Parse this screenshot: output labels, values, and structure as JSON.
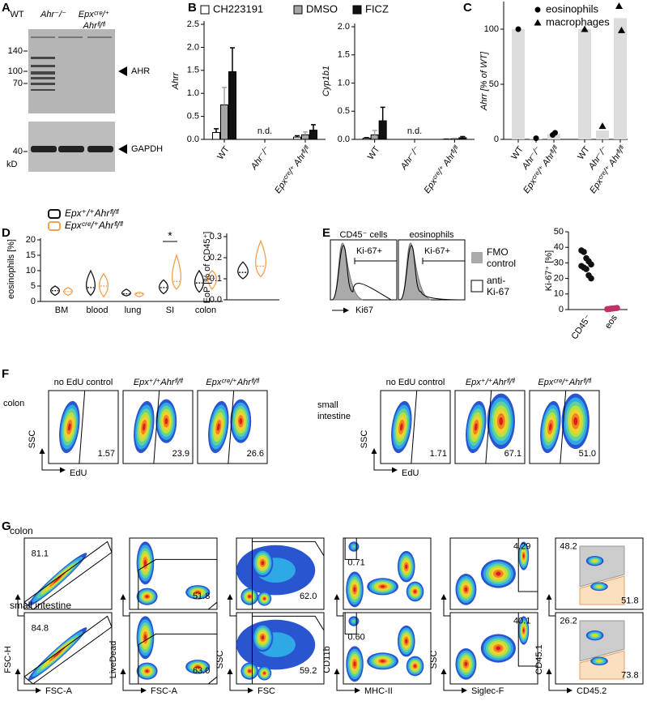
{
  "panel_labels": [
    "A",
    "B",
    "C",
    "D",
    "E",
    "F",
    "G"
  ],
  "A": {
    "lanes": [
      [
        "WT"
      ],
      [
        "Ahr⁻/⁻"
      ],
      [
        "Epxᶜʳᵉ/⁺",
        "Ahrᶠˡ/ᶠˡ"
      ]
    ],
    "markers": [
      140,
      100,
      70,
      40
    ],
    "unit": "kD",
    "targets": [
      "AHR",
      "GAPDH"
    ]
  },
  "B": {
    "legend": [
      {
        "name": "CH223191",
        "color": "#ffffff"
      },
      {
        "name": "DMSO",
        "color": "#a6a6a6"
      },
      {
        "name": "FICZ",
        "color": "#111111"
      }
    ],
    "charts": [
      {
        "ylabel": "Ahrr",
        "ylim": [
          0,
          2.5
        ],
        "yticks": [
          {
            "value": 0,
            "label": "0.0"
          },
          0.5,
          {
            "value": 1,
            "label": "1.0"
          },
          1.5,
          {
            "value": 2,
            "label": "2.0"
          },
          2.5
        ],
        "categories": [
          "WT",
          "Ahr⁻/⁻",
          "Epxᶜʳᵉ/⁺ Ahrᶠˡ/ᶠˡ"
        ],
        "values": [
          [
            0.15,
            null,
            0.05
          ],
          [
            0.75,
            null,
            0.1
          ],
          [
            1.47,
            null,
            0.2
          ]
        ],
        "errors": [
          [
            0.08,
            null,
            0.03
          ],
          [
            0.38,
            null,
            0.06
          ],
          [
            0.52,
            null,
            0.12
          ]
        ],
        "annotation": "n.d."
      },
      {
        "ylabel": "Cyp1b1",
        "ylim": [
          0,
          2
        ],
        "yticks": [
          {
            "value": 0,
            "label": "0.0"
          },
          0.5,
          {
            "value": 1,
            "label": "1.0"
          },
          1.5,
          {
            "value": 2,
            "label": "2.0"
          }
        ],
        "categories": [
          "WT",
          "Ahr⁻/⁻",
          "Epxᶜʳᵉ/⁺ Ahrᶠˡ/ᶠˡ"
        ],
        "values": [
          [
            0.02,
            null,
            0.003
          ],
          [
            0.08,
            null,
            0.01
          ],
          [
            0.33,
            null,
            0.03
          ]
        ],
        "errors": [
          [
            0.01,
            null,
            0.003
          ],
          [
            0.08,
            null,
            0.01
          ],
          [
            0.24,
            null,
            0.02
          ]
        ],
        "annotation": "n.d."
      }
    ]
  },
  "C": {
    "ylabel": "Ahrr [% of WT]",
    "ylim": [
      0,
      125
    ],
    "yticks": [
      0,
      50,
      100
    ],
    "categories": [
      "WT",
      "Ahr⁻/⁻",
      "Epxᶜʳᵉ/⁺ Ahrᶠˡ/ᶠˡ",
      "WT",
      "Ahr⁻/⁻",
      "Epxᶜʳᵉ/⁺ Ahrᶠˡ/ᶠˡ"
    ],
    "series": [
      {
        "name": "eosinophils",
        "bars": [
          100,
          1,
          5
        ],
        "points": [
          [
            100
          ],
          [
            1
          ],
          [
            4,
            6
          ]
        ]
      },
      {
        "name": "macrophages",
        "bars": [
          100,
          8,
          110
        ],
        "points": [
          [
            100
          ],
          [
            12
          ],
          [
            121,
            99
          ]
        ]
      }
    ]
  },
  "D": {
    "legend": [
      {
        "name": "Epx⁺/⁺Ahrᶠˡ/ᶠˡ",
        "color": "#111111"
      },
      {
        "name": "Epxᶜʳᵉ/⁺Ahrᶠˡ/ᶠˡ",
        "color": "#f0a050"
      }
    ],
    "charts": [
      {
        "ylabel": "eosinophils [%]",
        "ylim": [
          0,
          20
        ],
        "yticks": [
          0,
          5,
          10,
          15,
          20
        ],
        "categories": [
          "BM",
          "blood",
          "lung",
          "SI",
          "colon"
        ],
        "series": [
          {
            "min": [
              2,
              2,
              1.8,
              2.5,
              3
            ],
            "median": [
              3.5,
              4.5,
              2.5,
              4.5,
              6
            ],
            "max": [
              5,
              10,
              4,
              7,
              10
            ]
          },
          {
            "min": [
              2,
              1.5,
              1.5,
              4,
              4
            ],
            "median": [
              3.2,
              5,
              2.5,
              6.5,
              7.5
            ],
            "max": [
              4.5,
              9,
              3,
              15,
              10
            ]
          }
        ],
        "significance": [
          null,
          null,
          null,
          "*",
          null
        ]
      },
      {
        "ylabel": "EoP [% of CD45⁺]",
        "ylim": [
          0,
          0.3
        ],
        "yticks": [
          {
            "value": 0,
            "label": "0.0"
          },
          0.1,
          0.2,
          0.3
        ],
        "series": [
          {
            "min": [
              0.1
            ],
            "median": [
              0.13
            ],
            "max": [
              0.18
            ]
          },
          {
            "min": [
              0.11
            ],
            "median": [
              0.16
            ],
            "max": [
              0.28
            ]
          }
        ]
      }
    ]
  },
  "E": {
    "histograms": [
      {
        "title": "CD45⁻ cells",
        "gate": "Ki-67+"
      },
      {
        "title": "eosinophils",
        "gate": "Ki-67+"
      }
    ],
    "xlabel": "Ki67",
    "legend": [
      [
        "FMO",
        "control"
      ],
      [
        "anti-",
        "Ki-67"
      ]
    ],
    "dots": {
      "ylabel": "Ki-67⁺ [%]",
      "ylim": [
        0,
        50
      ],
      "yticks": [
        0,
        10,
        20,
        30,
        40,
        50
      ],
      "categories": [
        "CD45⁻",
        "eos"
      ],
      "values": [
        [
          38,
          37,
          33,
          31,
          29,
          28,
          27,
          26,
          22,
          20
        ],
        [
          0.2,
          0.4,
          0.6,
          0.8,
          1,
          0.3,
          0.5,
          0.7
        ]
      ],
      "colors": [
        "#111111",
        "#c0306a"
      ]
    }
  },
  "F": {
    "xlabel": "EdU",
    "ylabel": "SSC",
    "groups": [
      {
        "tissue": [
          "colon"
        ],
        "plots": [
          {
            "title": "no EdU control",
            "value": "1.57"
          },
          {
            "title": "Epx⁺/⁺Ahrᶠˡ/ᶠˡ",
            "value": "23.9"
          },
          {
            "title": "Epxᶜʳᵉ/⁺Ahrᶠˡ/ᶠˡ",
            "value": "26.6"
          }
        ]
      },
      {
        "tissue": [
          "small",
          "intestine"
        ],
        "plots": [
          {
            "title": "no EdU control",
            "value": "1.71"
          },
          {
            "title": "Epx⁺/⁺Ahrᶠˡ/ᶠˡ",
            "value": "67.1"
          },
          {
            "title": "Epxᶜʳᵉ/⁺Ahrᶠˡ/ᶠˡ",
            "value": "51.0"
          }
        ]
      }
    ]
  },
  "G": {
    "axes": [
      [
        "FSC-A",
        "FSC-H"
      ],
      [
        "FSC-A",
        "LiveDead"
      ],
      [
        "FSC",
        "SSC"
      ],
      [
        "MHC-II",
        "CD11b"
      ],
      [
        "Siglec-F",
        "SSC"
      ],
      [
        "CD45.2",
        "CD45.1"
      ]
    ],
    "rows": [
      {
        "tissue": "colon",
        "gates": [
          [
            "81.1"
          ],
          [
            "51.8"
          ],
          [
            "62.0"
          ],
          [
            "0.71"
          ],
          [
            "4.29"
          ],
          [
            "48.2",
            "51.8"
          ]
        ]
      },
      {
        "tissue": "small intestine",
        "gates": [
          [
            "84.8"
          ],
          [
            "63.0"
          ],
          [
            "59.2"
          ],
          [
            "0.60"
          ],
          [
            "40.1"
          ],
          [
            "26.2",
            "73.8"
          ]
        ]
      }
    ]
  }
}
